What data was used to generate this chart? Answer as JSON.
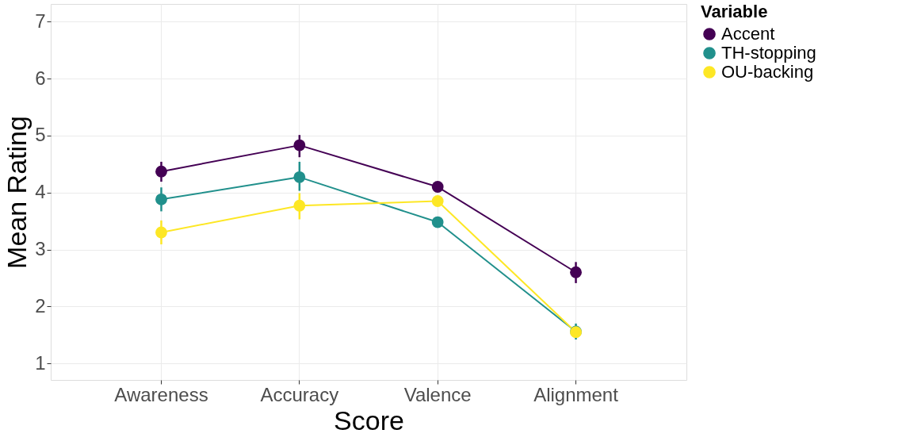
{
  "chart_data": {
    "type": "line",
    "xlabel": "Score",
    "ylabel": "Mean Rating",
    "legend_title": "Variable",
    "categories": [
      "Awareness",
      "Accuracy",
      "Valence",
      "Alignment"
    ],
    "series": [
      {
        "name": "Accent",
        "color": "#440154",
        "values": [
          4.37,
          4.83,
          4.1,
          2.6
        ],
        "errors": [
          [
            4.19,
            4.54
          ],
          [
            4.62,
            5.01
          ],
          [
            4.04,
            4.17
          ],
          [
            2.41,
            2.78
          ]
        ]
      },
      {
        "name": "TH-stopping",
        "color": "#21908c",
        "values": [
          3.88,
          4.27,
          3.48,
          1.56
        ],
        "errors": [
          [
            3.67,
            4.09
          ],
          [
            4.03,
            4.54
          ],
          [
            3.43,
            3.53
          ],
          [
            1.42,
            1.7
          ]
        ]
      },
      {
        "name": "OU-backing",
        "color": "#fde725",
        "values": [
          3.3,
          3.77,
          3.85,
          1.55
        ],
        "errors": [
          [
            3.09,
            3.51
          ],
          [
            3.53,
            3.99
          ],
          [
            3.8,
            3.9
          ],
          [
            1.45,
            1.65
          ]
        ]
      }
    ],
    "ylim": [
      0.71,
      7.31
    ],
    "yticks": [
      1,
      2,
      3,
      4,
      5,
      6,
      7
    ],
    "grid": true,
    "legend": "right",
    "marker": "circle",
    "line_style": "solid"
  }
}
